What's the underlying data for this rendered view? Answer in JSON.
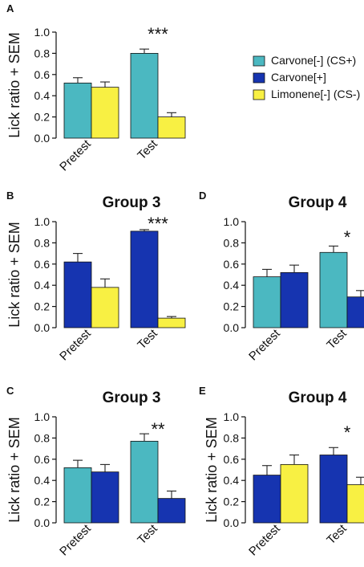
{
  "colors": {
    "carvone_minus": "#4bb8c1",
    "carvone_plus": "#1634b0",
    "limonene_minus": "#f8f043"
  },
  "legend": [
    {
      "key": "carvone_minus",
      "label": "Carvone[-] (CS+)"
    },
    {
      "key": "carvone_plus",
      "label": "Carvone[+]"
    },
    {
      "key": "limonene_minus",
      "label": "Limonene[-] (CS-)"
    }
  ],
  "chart_data": [
    {
      "panel": "A",
      "type": "bar",
      "title": "",
      "ylabel": "Lick ratio + SEM",
      "ylim": [
        0,
        1.0
      ],
      "yticks": [
        "0.0",
        "0.2",
        "0.4",
        "0.6",
        "0.8",
        "1.0"
      ],
      "categories": [
        "Pretest",
        "Test"
      ],
      "series": [
        {
          "name": "Carvone[-] (CS+)",
          "color_key": "carvone_minus",
          "values": [
            0.52,
            0.8
          ],
          "sem": [
            0.05,
            0.04
          ]
        },
        {
          "name": "Limonene[-] (CS-)",
          "color_key": "limonene_minus",
          "values": [
            0.48,
            0.2
          ],
          "sem": [
            0.05,
            0.04
          ]
        }
      ],
      "significance": [
        "",
        "***"
      ]
    },
    {
      "panel": "B",
      "type": "bar",
      "title": "Group 3",
      "ylabel": "Lick ratio + SEM",
      "ylim": [
        0,
        1.0
      ],
      "yticks": [
        "0.0",
        "0.2",
        "0.4",
        "0.6",
        "0.8",
        "1.0"
      ],
      "categories": [
        "Pretest",
        "Test"
      ],
      "series": [
        {
          "name": "Carvone[+]",
          "color_key": "carvone_plus",
          "values": [
            0.62,
            0.91
          ],
          "sem": [
            0.08,
            0.015
          ]
        },
        {
          "name": "Limonene[-] (CS-)",
          "color_key": "limonene_minus",
          "values": [
            0.38,
            0.09
          ],
          "sem": [
            0.08,
            0.015
          ]
        }
      ],
      "significance": [
        "",
        "***"
      ]
    },
    {
      "panel": "D",
      "type": "bar",
      "title": "Group 4",
      "ylabel": "",
      "ylim": [
        0,
        1.0
      ],
      "yticks": [
        "0.0",
        "0.2",
        "0.4",
        "0.6",
        "0.8",
        "1.0"
      ],
      "categories": [
        "Pretest",
        "Test"
      ],
      "series": [
        {
          "name": "Carvone[-] (CS+)",
          "color_key": "carvone_minus",
          "values": [
            0.48,
            0.71
          ],
          "sem": [
            0.07,
            0.06
          ]
        },
        {
          "name": "Carvone[+]",
          "color_key": "carvone_plus",
          "values": [
            0.52,
            0.29
          ],
          "sem": [
            0.07,
            0.06
          ]
        }
      ],
      "significance": [
        "",
        "*"
      ]
    },
    {
      "panel": "C",
      "type": "bar",
      "title": "Group 3",
      "ylabel": "Lick ratio + SEM",
      "ylim": [
        0,
        1.0
      ],
      "yticks": [
        "0.0",
        "0.2",
        "0.4",
        "0.6",
        "0.8",
        "1.0"
      ],
      "categories": [
        "Pretest",
        "Test"
      ],
      "series": [
        {
          "name": "Carvone[-] (CS+)",
          "color_key": "carvone_minus",
          "values": [
            0.52,
            0.77
          ],
          "sem": [
            0.07,
            0.07
          ]
        },
        {
          "name": "Carvone[+]",
          "color_key": "carvone_plus",
          "values": [
            0.48,
            0.23
          ],
          "sem": [
            0.07,
            0.07
          ]
        }
      ],
      "significance": [
        "",
        "**"
      ]
    },
    {
      "panel": "E",
      "type": "bar",
      "title": "Group 4",
      "ylabel": "Lick ratio + SEM",
      "ylim": [
        0,
        1.0
      ],
      "yticks": [
        "0.0",
        "0.2",
        "0.4",
        "0.6",
        "0.8",
        "1.0"
      ],
      "categories": [
        "Pretest",
        "Test"
      ],
      "series": [
        {
          "name": "Carvone[+]",
          "color_key": "carvone_plus",
          "values": [
            0.45,
            0.64
          ],
          "sem": [
            0.09,
            0.07
          ]
        },
        {
          "name": "Limonene[-] (CS-)",
          "color_key": "limonene_minus",
          "values": [
            0.55,
            0.36
          ],
          "sem": [
            0.09,
            0.07
          ]
        }
      ],
      "significance": [
        "",
        "*"
      ]
    }
  ]
}
